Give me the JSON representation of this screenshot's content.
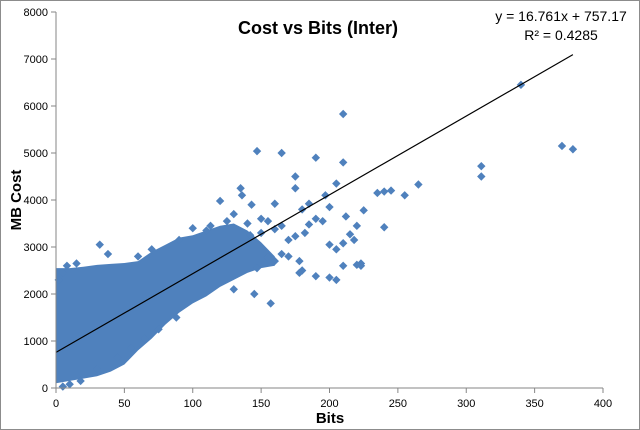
{
  "chart_data": {
    "type": "scatter",
    "title": "Cost vs Bits (Inter)",
    "xlabel": "Bits",
    "ylabel": "MB Cost",
    "xlim": [
      0,
      400
    ],
    "ylim": [
      0,
      8000
    ],
    "x_ticks": [
      0,
      50,
      100,
      150,
      200,
      250,
      300,
      350,
      400
    ],
    "y_ticks": [
      0,
      1000,
      2000,
      3000,
      4000,
      5000,
      6000,
      7000,
      8000
    ],
    "grid": false,
    "legend": "none",
    "marker_color": "#4F81BD",
    "trendline": {
      "type": "linear",
      "slope": 16.761,
      "intercept": 757.17,
      "x_range": [
        0,
        378
      ],
      "color": "#000000",
      "equation_label": "y = 16.761x + 757.17",
      "r_squared_label": "R² = 0.4285",
      "label_position": "top-right"
    },
    "dense_cloud": {
      "upper_x": [
        0,
        10,
        20,
        30,
        40,
        50,
        60,
        70,
        80,
        90,
        100,
        110,
        120,
        130,
        140,
        150,
        160
      ],
      "upper_y": [
        2550,
        2550,
        2580,
        2620,
        2640,
        2660,
        2700,
        2900,
        3050,
        3200,
        3250,
        3350,
        3450,
        3500,
        3350,
        3100,
        2800
      ],
      "lower_x": [
        0,
        10,
        20,
        30,
        40,
        50,
        60,
        70,
        80,
        90,
        100,
        110,
        120,
        130,
        140,
        150,
        160
      ],
      "lower_y": [
        100,
        150,
        200,
        250,
        350,
        500,
        800,
        1050,
        1350,
        1600,
        1800,
        1950,
        2150,
        2300,
        2450,
        2550,
        2600
      ]
    },
    "series": [
      {
        "values": [
          [
            340,
            6450
          ],
          [
            210,
            5830
          ],
          [
            147,
            5040
          ],
          [
            165,
            5000
          ],
          [
            370,
            5150
          ],
          [
            378,
            5080
          ],
          [
            311,
            4720
          ],
          [
            311,
            4500
          ],
          [
            190,
            4900
          ],
          [
            210,
            4800
          ],
          [
            205,
            4350
          ],
          [
            175,
            4500
          ],
          [
            175,
            4250
          ],
          [
            265,
            4330
          ],
          [
            240,
            4180
          ],
          [
            245,
            4200
          ],
          [
            235,
            4150
          ],
          [
            255,
            4100
          ],
          [
            197,
            4100
          ],
          [
            160,
            3920
          ],
          [
            135,
            4250
          ],
          [
            136,
            4100
          ],
          [
            120,
            3980
          ],
          [
            143,
            3900
          ],
          [
            180,
            3800
          ],
          [
            185,
            3920
          ],
          [
            200,
            3850
          ],
          [
            212,
            3650
          ],
          [
            225,
            3780
          ],
          [
            240,
            3420
          ],
          [
            215,
            3270
          ],
          [
            210,
            3080
          ],
          [
            220,
            3450
          ],
          [
            218,
            3150
          ],
          [
            190,
            3600
          ],
          [
            195,
            3550
          ],
          [
            185,
            3480
          ],
          [
            165,
            3450
          ],
          [
            160,
            3380
          ],
          [
            175,
            3230
          ],
          [
            170,
            3150
          ],
          [
            182,
            3300
          ],
          [
            150,
            3600
          ],
          [
            155,
            3550
          ],
          [
            140,
            3500
          ],
          [
            142,
            3250
          ],
          [
            165,
            2850
          ],
          [
            170,
            2800
          ],
          [
            155,
            2780
          ],
          [
            160,
            2700
          ],
          [
            178,
            2700
          ],
          [
            210,
            2600
          ],
          [
            223,
            2650
          ],
          [
            223,
            2600
          ],
          [
            220,
            2620
          ],
          [
            205,
            2950
          ],
          [
            200,
            3050
          ],
          [
            130,
            3700
          ],
          [
            125,
            3550
          ],
          [
            150,
            3300
          ],
          [
            32,
            3050
          ],
          [
            38,
            2850
          ],
          [
            60,
            2800
          ],
          [
            70,
            2950
          ],
          [
            90,
            3150
          ],
          [
            100,
            3400
          ],
          [
            110,
            3350
          ],
          [
            113,
            3450
          ],
          [
            15,
            2650
          ],
          [
            8,
            2600
          ],
          [
            5,
            2450
          ],
          [
            2,
            2300
          ],
          [
            157,
            1800
          ],
          [
            130,
            2100
          ],
          [
            145,
            2000
          ],
          [
            147,
            2550
          ],
          [
            190,
            2380
          ],
          [
            205,
            2300
          ],
          [
            180,
            2500
          ],
          [
            178,
            2450
          ],
          [
            200,
            2350
          ],
          [
            88,
            1500
          ],
          [
            75,
            1250
          ],
          [
            65,
            1050
          ],
          [
            55,
            850
          ],
          [
            45,
            650
          ],
          [
            30,
            400
          ],
          [
            18,
            150
          ],
          [
            10,
            80
          ],
          [
            5,
            30
          ]
        ]
      }
    ]
  }
}
